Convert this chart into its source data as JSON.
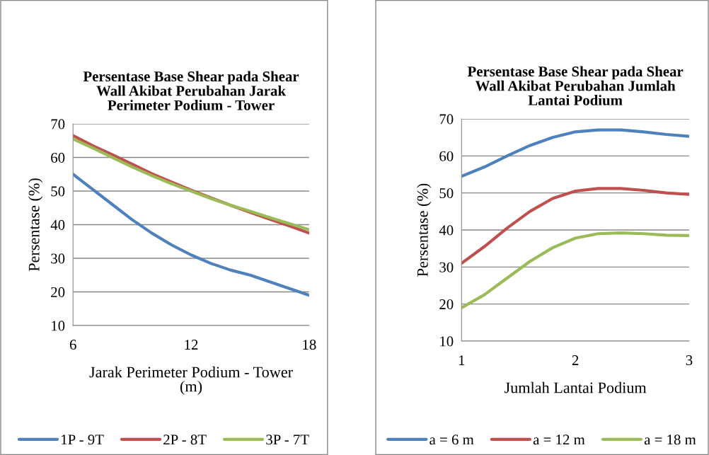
{
  "chart_data": [
    {
      "type": "line",
      "title": "Persentase Base Shear pada Shear\nWall Akibat Perubahan Jarak\nPerimeter Podium - Tower",
      "xlabel": "Jarak Perimeter Podium - Tower\n(m)",
      "ylabel": "Persentase (%)",
      "x": [
        6,
        7,
        8,
        9,
        10,
        11,
        12,
        13,
        14,
        15,
        16,
        17,
        18
      ],
      "xlim": [
        6,
        18
      ],
      "xticks": [
        6,
        12,
        18
      ],
      "ylim": [
        10,
        70
      ],
      "yticks": [
        10,
        20,
        30,
        40,
        50,
        60,
        70
      ],
      "grid": "y",
      "legend": "bottom",
      "series": [
        {
          "name": "1P - 9T",
          "color": "#4f81bd",
          "values": [
            55,
            50.5,
            46,
            41.5,
            37.5,
            34,
            31,
            28.5,
            26.5,
            25,
            23,
            21,
            19
          ]
        },
        {
          "name": "2P - 8T",
          "color": "#c0504d",
          "values": [
            66.5,
            63.5,
            60.8,
            58,
            55.2,
            52.7,
            50.3,
            48,
            45.8,
            43.7,
            41.6,
            39.6,
            37.5
          ]
        },
        {
          "name": "3P - 7T",
          "color": "#9bbb59",
          "values": [
            65.5,
            62.8,
            60,
            57.2,
            54.6,
            52.2,
            50,
            47.8,
            45.8,
            44,
            42.1,
            40.3,
            38.5
          ]
        }
      ]
    },
    {
      "type": "line",
      "title": "Persentase Base Shear pada Shear\nWall Akibat Perubahan Jumlah\nLantai Podium",
      "xlabel": "Jumlah Lantai Podium",
      "ylabel": "Persentase (%)",
      "x": [
        1,
        1.2,
        1.4,
        1.6,
        1.8,
        2,
        2.2,
        2.4,
        2.6,
        2.8,
        3
      ],
      "xlim": [
        1,
        3
      ],
      "xticks": [
        1,
        2,
        3
      ],
      "ylim": [
        10,
        70
      ],
      "yticks": [
        10,
        20,
        30,
        40,
        50,
        60,
        70
      ],
      "grid": "y",
      "legend": "bottom",
      "series": [
        {
          "name": "a = 6 m",
          "color": "#4f81bd",
          "values": [
            54.5,
            57,
            60,
            62.8,
            65,
            66.5,
            67,
            67,
            66.5,
            65.8,
            65.3
          ]
        },
        {
          "name": "a = 12 m",
          "color": "#c0504d",
          "values": [
            31,
            35.5,
            40.5,
            45,
            48.5,
            50.5,
            51.2,
            51.2,
            50.7,
            50,
            49.6
          ]
        },
        {
          "name": "a = 18 m",
          "color": "#9bbb59",
          "values": [
            19,
            22.5,
            27,
            31.5,
            35.2,
            37.8,
            39,
            39.2,
            39,
            38.6,
            38.5
          ]
        }
      ]
    }
  ]
}
